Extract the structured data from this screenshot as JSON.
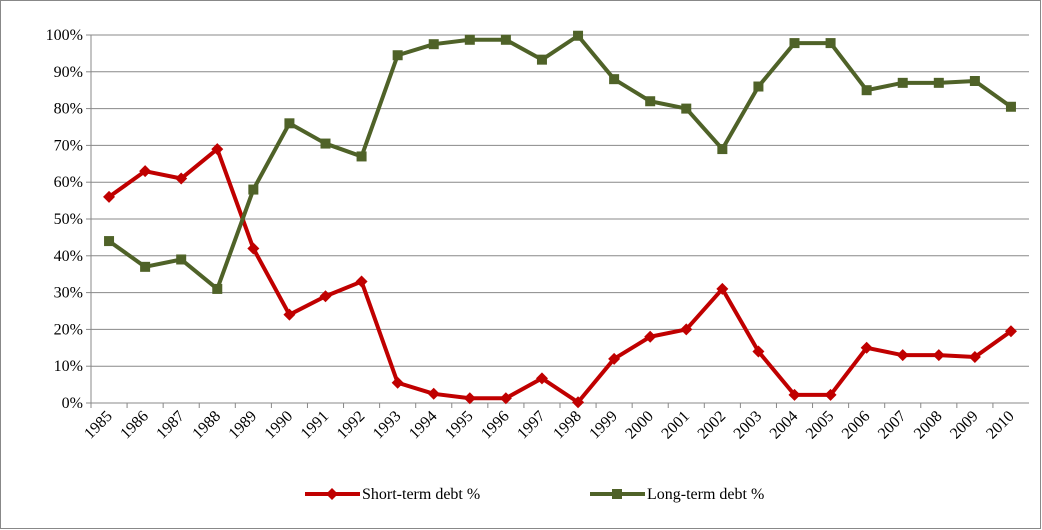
{
  "chart_data": {
    "type": "line",
    "categories": [
      "1985",
      "1986",
      "1987",
      "1988",
      "1989",
      "1990",
      "1991",
      "1992",
      "1993",
      "1994",
      "1995",
      "1996",
      "1997",
      "1998",
      "1999",
      "2000",
      "2001",
      "2002",
      "2003",
      "2004",
      "2005",
      "2006",
      "2007",
      "2008",
      "2009",
      "2010"
    ],
    "series": [
      {
        "name": "Short-term debt %",
        "color": "#c00000",
        "marker": "diamond",
        "values": [
          56,
          63,
          61,
          69,
          42,
          24,
          29,
          33,
          5.5,
          2.5,
          1.3,
          1.3,
          6.7,
          0.2,
          12,
          18,
          20,
          31,
          14,
          2.2,
          2.2,
          15,
          13,
          13,
          12.5,
          19.5
        ]
      },
      {
        "name": "Long-term debt %",
        "color": "#4f6228",
        "marker": "square",
        "values": [
          44,
          37,
          39,
          31,
          58,
          76,
          70.5,
          67,
          94.5,
          97.5,
          98.7,
          98.7,
          93.3,
          99.8,
          88,
          82,
          80,
          69,
          86,
          97.8,
          97.8,
          85,
          87,
          87,
          87.5,
          80.5
        ]
      }
    ],
    "ylim": [
      0,
      100
    ],
    "yticks": [
      {
        "value": 0,
        "label": "0%"
      },
      {
        "value": 10,
        "label": "10%"
      },
      {
        "value": 20,
        "label": "20%"
      },
      {
        "value": 30,
        "label": "30%"
      },
      {
        "value": 40,
        "label": "40%"
      },
      {
        "value": 50,
        "label": "50%"
      },
      {
        "value": 60,
        "label": "60%"
      },
      {
        "value": 70,
        "label": "70%"
      },
      {
        "value": 80,
        "label": "80%"
      },
      {
        "value": 90,
        "label": "90%"
      },
      {
        "value": 100,
        "label": "100%"
      }
    ],
    "grid": true,
    "legend": "bottom"
  }
}
